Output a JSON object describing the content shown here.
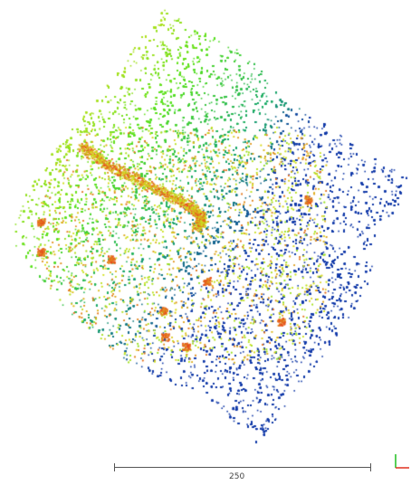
{
  "scale_bar": {
    "label": "250"
  },
  "axes": {
    "x_color": "#e0301e",
    "y_color": "#1fbf1f"
  },
  "colormap": {
    "high": "#e8401c",
    "mid_high": "#d8e020",
    "mid": "#58e020",
    "low": "#1aa86a",
    "lowest": "#123aa8"
  },
  "icons": [
    "axis-triad-icon"
  ]
}
